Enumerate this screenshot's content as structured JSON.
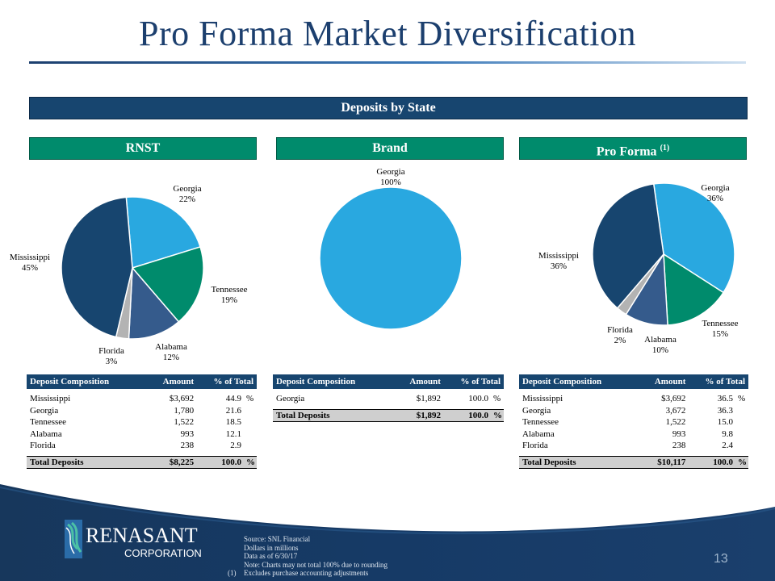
{
  "title": "Pro Forma Market Diversification",
  "banner": "Deposits by State",
  "columns": [
    {
      "name": "RNST",
      "sup": ""
    },
    {
      "name": "Brand",
      "sup": ""
    },
    {
      "name": "Pro Forma ",
      "sup": "(1)"
    }
  ],
  "pies": {
    "rnst": [
      {
        "label": "Georgia",
        "pct": "22%",
        "value": 21.6,
        "color": "#29a8e0"
      },
      {
        "label": "Tennessee",
        "pct": "19%",
        "value": 18.5,
        "color": "#008b6c"
      },
      {
        "label": "Alabama",
        "pct": "12%",
        "value": 12.1,
        "color": "#355b8c"
      },
      {
        "label": "Florida",
        "pct": "3%",
        "value": 2.9,
        "color": "#b3b3b3"
      },
      {
        "label": "Mississippi",
        "pct": "45%",
        "value": 44.9,
        "color": "#17456f"
      }
    ],
    "brand": [
      {
        "label": "Georgia",
        "pct": "100%",
        "value": 100.0,
        "color": "#29a8e0"
      }
    ],
    "proforma": [
      {
        "label": "Georgia",
        "pct": "36%",
        "value": 36.3,
        "color": "#29a8e0"
      },
      {
        "label": "Tennessee",
        "pct": "15%",
        "value": 15.0,
        "color": "#008b6c"
      },
      {
        "label": "Alabama",
        "pct": "10%",
        "value": 9.8,
        "color": "#355b8c"
      },
      {
        "label": "Florida",
        "pct": "2%",
        "value": 2.4,
        "color": "#b3b3b3"
      },
      {
        "label": "Mississippi",
        "pct": "36%",
        "value": 36.5,
        "color": "#17456f"
      }
    ]
  },
  "tables": {
    "headers": {
      "composition": "Deposit Composition",
      "amount": "Amount",
      "pct": "% of Total"
    },
    "pct_sign": "%",
    "rnst": {
      "rows": [
        {
          "state": "Mississippi",
          "amount": "$3,692",
          "pct": "44.9",
          "sign": "%"
        },
        {
          "state": "Georgia",
          "amount": "1,780",
          "pct": "21.6",
          "sign": ""
        },
        {
          "state": "Tennessee",
          "amount": "1,522",
          "pct": "18.5",
          "sign": ""
        },
        {
          "state": "Alabama",
          "amount": "993",
          "pct": "12.1",
          "sign": ""
        },
        {
          "state": "Florida",
          "amount": "238",
          "pct": "2.9",
          "sign": ""
        }
      ],
      "total": {
        "label": "Total Deposits",
        "amount": "$8,225",
        "pct": "100.0",
        "sign": "%"
      }
    },
    "brand": {
      "rows": [
        {
          "state": "Georgia",
          "amount": "$1,892",
          "pct": "100.0",
          "sign": "%"
        }
      ],
      "total": {
        "label": "Total Deposits",
        "amount": "$1,892",
        "pct": "100.0",
        "sign": "%"
      }
    },
    "proforma": {
      "rows": [
        {
          "state": "Mississippi",
          "amount": "$3,692",
          "pct": "36.5",
          "sign": "%"
        },
        {
          "state": "Georgia",
          "amount": "3,672",
          "pct": "36.3",
          "sign": ""
        },
        {
          "state": "Tennessee",
          "amount": "1,522",
          "pct": "15.0",
          "sign": ""
        },
        {
          "state": "Alabama",
          "amount": "993",
          "pct": "9.8",
          "sign": ""
        },
        {
          "state": "Florida",
          "amount": "238",
          "pct": "2.4",
          "sign": ""
        }
      ],
      "total": {
        "label": "Total Deposits",
        "amount": "$10,117",
        "pct": "100.0",
        "sign": "%"
      }
    }
  },
  "logo": {
    "line1": "RENASANT",
    "line2": "CORPORATION"
  },
  "notes": [
    "Source: SNL Financial",
    "Dollars in millions",
    "Data as of 6/30/17",
    "Note: Charts may not total 100% due to rounding",
    "Excludes purchase accounting adjustments"
  ],
  "note_marker": "(1)",
  "page_number": "13",
  "colors": {
    "navy": "#17456f",
    "green": "#008b6c",
    "sky": "#29a8e0"
  }
}
